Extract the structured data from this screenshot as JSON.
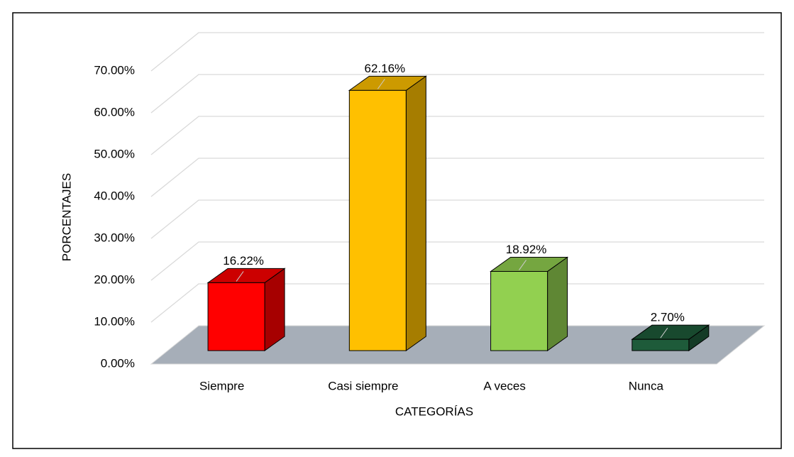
{
  "chart_data": {
    "type": "bar3d",
    "categories": [
      "Siempre",
      "Casi siempre",
      "A veces",
      "Nunca"
    ],
    "values": [
      16.22,
      62.16,
      18.92,
      2.7
    ],
    "value_labels": [
      "16.22%",
      "62.16%",
      "18.92%",
      "2.70%"
    ],
    "colors": [
      "#ff0000",
      "#ffc000",
      "#92d050",
      "#1e5b3a"
    ],
    "ylabel": "PORCENTAJES",
    "xlabel": "CATEGORÍAS",
    "ylim": [
      0,
      70
    ],
    "yticks": [
      {
        "value": 0,
        "label": "0.00%"
      },
      {
        "value": 10,
        "label": "10.00%"
      },
      {
        "value": 20,
        "label": "20.00%"
      },
      {
        "value": 30,
        "label": "30.00%"
      },
      {
        "value": 40,
        "label": "40.00%"
      },
      {
        "value": 50,
        "label": "50.00%"
      },
      {
        "value": 60,
        "label": "60.00%"
      },
      {
        "value": 70,
        "label": "70.00%"
      }
    ],
    "grid": true
  }
}
